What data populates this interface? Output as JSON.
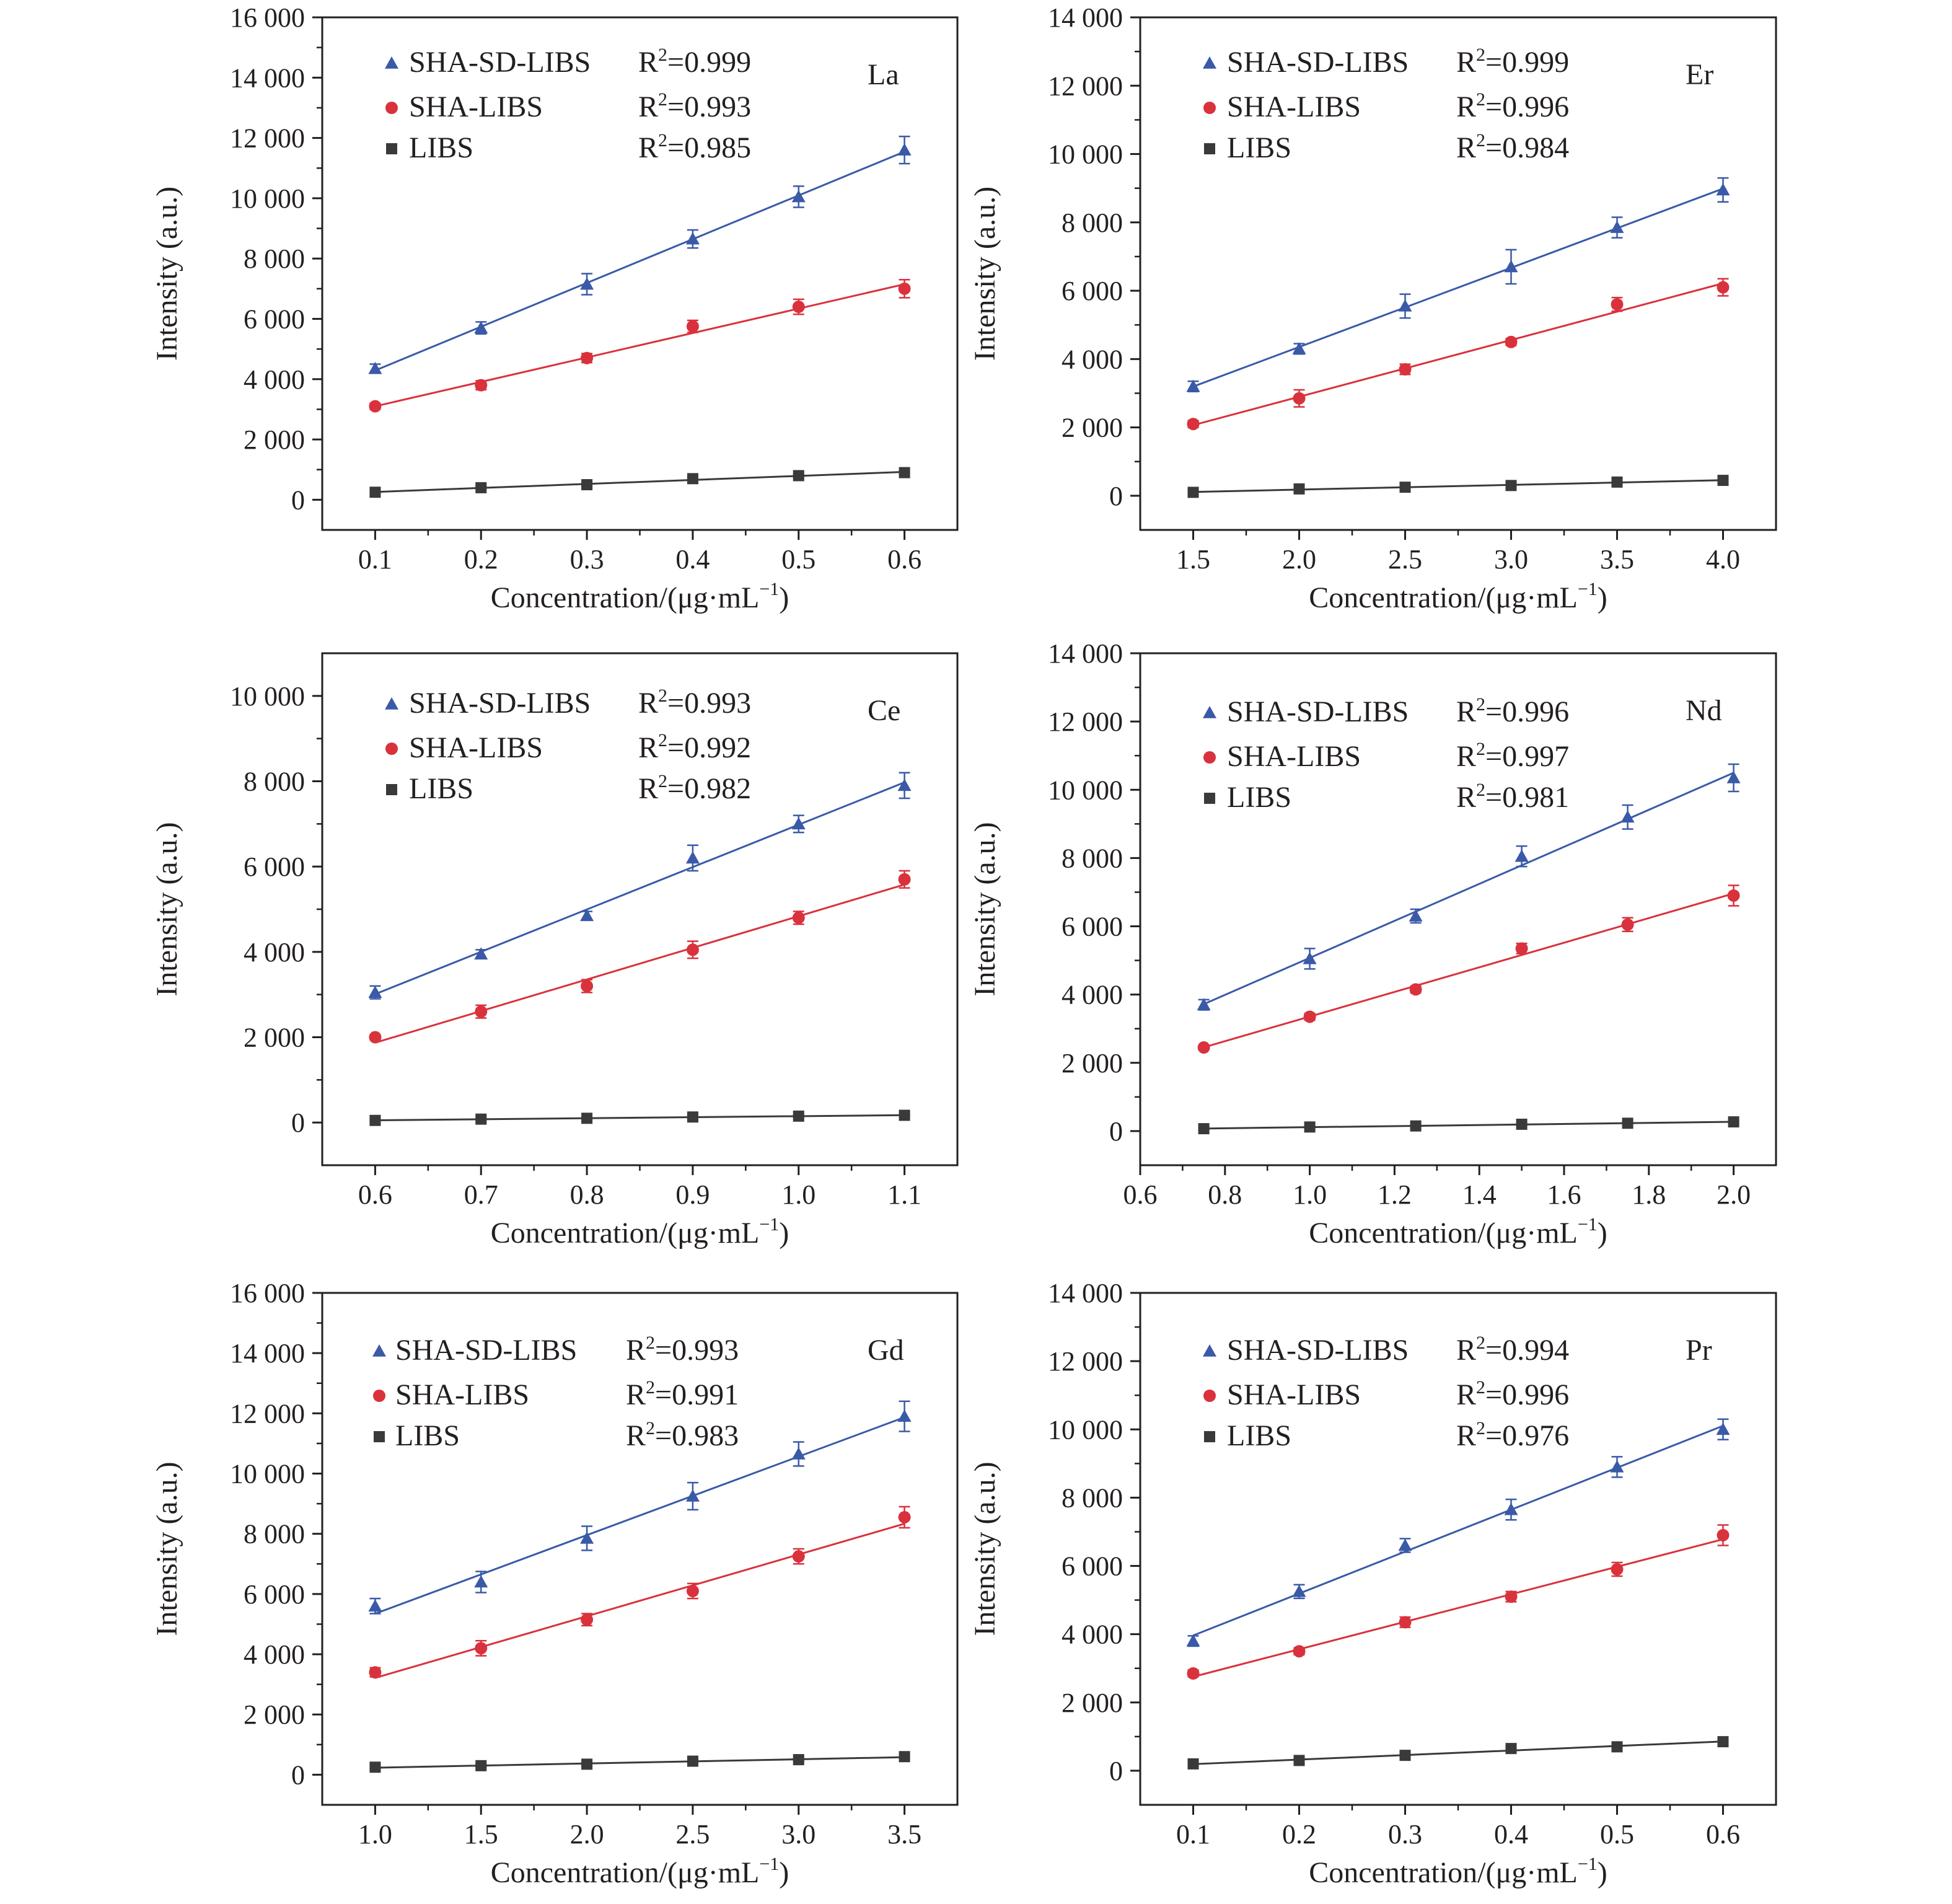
{
  "colors": {
    "sha_sd_libs": "#3a5aa8",
    "sha_libs": "#d9323c",
    "libs": "#3a3a3a",
    "axis": "#231f20"
  },
  "chart_data": [
    {
      "type": "scatter",
      "element_label": "La",
      "xlabel": "Concentration/(μg·mL",
      "xlabel_sup": "−1",
      "xlabel_tail": ")",
      "ylabel": "Intensity (a.u.)",
      "xlim": [
        0.05,
        0.65
      ],
      "ylim": [
        -1000,
        16000
      ],
      "x": [
        0.1,
        0.2,
        0.3,
        0.4,
        0.5,
        0.6
      ],
      "x_ticks": [
        "0.1",
        "0.2",
        "0.3",
        "0.4",
        "0.5",
        "0.6"
      ],
      "y_ticks": [
        0,
        2000,
        4000,
        6000,
        8000,
        10000,
        12000,
        14000,
        16000
      ],
      "y_tick_labels": [
        "0",
        "2 000",
        "4 000",
        "6 000",
        "8 000",
        "10 000",
        "12 000",
        "14 000",
        "16 000"
      ],
      "series": [
        {
          "name": "SHA-SD-LIBS",
          "marker": "triangle",
          "r2_label": "R",
          "r2_sup": "2",
          "r2_value": "=0.999",
          "values": [
            4350,
            5700,
            7150,
            8650,
            10050,
            11600
          ],
          "errors": [
            150,
            200,
            350,
            300,
            350,
            450
          ]
        },
        {
          "name": "SHA-LIBS",
          "marker": "circle",
          "r2_label": "R",
          "r2_sup": "2",
          "r2_value": "=0.993",
          "values": [
            3100,
            3800,
            4700,
            5750,
            6400,
            7000
          ],
          "errors": [
            100,
            150,
            150,
            200,
            250,
            300
          ]
        },
        {
          "name": "LIBS",
          "marker": "square",
          "r2_label": "R",
          "r2_sup": "2",
          "r2_value": "=0.985",
          "values": [
            250,
            400,
            500,
            700,
            800,
            900
          ],
          "errors": [
            50,
            50,
            50,
            50,
            50,
            50
          ]
        }
      ]
    },
    {
      "type": "scatter",
      "element_label": "Er",
      "xlabel": "Concentration/(μg·mL",
      "xlabel_sup": "−1",
      "xlabel_tail": ")",
      "ylabel": "Intensity (a.u.)",
      "xlim": [
        1.25,
        4.25
      ],
      "ylim": [
        -1000,
        14000
      ],
      "x": [
        1.5,
        2.0,
        2.5,
        3.0,
        3.5,
        4.0
      ],
      "x_ticks": [
        "1.5",
        "2.0",
        "2.5",
        "3.0",
        "3.5",
        "4.0"
      ],
      "y_ticks": [
        0,
        2000,
        4000,
        6000,
        8000,
        10000,
        12000,
        14000
      ],
      "y_tick_labels": [
        "0",
        "2 000",
        "4 000",
        "6 000",
        "8 000",
        "10 000",
        "12 000",
        "14 000"
      ],
      "series": [
        {
          "name": "SHA-SD-LIBS",
          "marker": "triangle",
          "r2_label": "R",
          "r2_sup": "2",
          "r2_value": "=0.999",
          "values": [
            3200,
            4300,
            5550,
            6700,
            7850,
            8950
          ],
          "errors": [
            150,
            150,
            350,
            500,
            300,
            350
          ]
        },
        {
          "name": "SHA-LIBS",
          "marker": "circle",
          "r2_label": "R",
          "r2_sup": "2",
          "r2_value": "=0.996",
          "values": [
            2100,
            2850,
            3700,
            4500,
            5600,
            6100
          ],
          "errors": [
            100,
            250,
            150,
            100,
            200,
            250
          ]
        },
        {
          "name": "LIBS",
          "marker": "square",
          "r2_label": "R",
          "r2_sup": "2",
          "r2_value": "=0.984",
          "values": [
            100,
            200,
            250,
            300,
            400,
            450
          ],
          "errors": [
            50,
            50,
            50,
            50,
            50,
            50
          ]
        }
      ]
    },
    {
      "type": "scatter",
      "element_label": "Ce",
      "xlabel": "Concentration/(μg·mL",
      "xlabel_sup": "−1",
      "xlabel_tail": ")",
      "ylabel": "Intensity (a.u.)",
      "xlim": [
        0.55,
        1.15
      ],
      "ylim": [
        -1000,
        11000
      ],
      "x": [
        0.6,
        0.7,
        0.8,
        0.9,
        1.0,
        1.1
      ],
      "x_ticks": [
        "0.6",
        "0.7",
        "0.8",
        "0.9",
        "1.0",
        "1.1"
      ],
      "y_ticks": [
        0,
        2000,
        4000,
        6000,
        8000,
        10000
      ],
      "y_tick_labels": [
        "0",
        "2 000",
        "4 000",
        "6 000",
        "8 000",
        "10 000"
      ],
      "series": [
        {
          "name": "SHA-SD-LIBS",
          "marker": "triangle",
          "r2_label": "R",
          "r2_sup": "2",
          "r2_value": "=0.993",
          "values": [
            3050,
            3950,
            4850,
            6200,
            7000,
            7900
          ],
          "errors": [
            150,
            100,
            100,
            300,
            200,
            300
          ]
        },
        {
          "name": "SHA-LIBS",
          "marker": "circle",
          "r2_label": "R",
          "r2_sup": "2",
          "r2_value": "=0.992",
          "values": [
            2000,
            2600,
            3200,
            4050,
            4800,
            5700
          ],
          "errors": [
            50,
            150,
            150,
            200,
            150,
            200
          ]
        },
        {
          "name": "LIBS",
          "marker": "square",
          "r2_label": "R",
          "r2_sup": "2",
          "r2_value": "=0.982",
          "values": [
            50,
            80,
            100,
            130,
            150,
            170
          ],
          "errors": [
            30,
            30,
            30,
            30,
            30,
            30
          ]
        }
      ]
    },
    {
      "type": "scatter",
      "element_label": "Nd",
      "xlabel": "Concentration/(μg·mL",
      "xlabel_sup": "−1",
      "xlabel_tail": ")",
      "ylabel": "Intensity (a.u.)",
      "xlim": [
        0.6,
        2.1
      ],
      "ylim": [
        -1000,
        14000
      ],
      "x": [
        0.75,
        1.0,
        1.25,
        1.5,
        1.75,
        2.0
      ],
      "x_ticks": [
        "0.6",
        "0.8",
        "1.0",
        "1.2",
        "1.4",
        "1.6",
        "1.8",
        "2.0"
      ],
      "x_tick_values": [
        0.6,
        0.8,
        1.0,
        1.2,
        1.4,
        1.6,
        1.8,
        2.0
      ],
      "y_ticks": [
        0,
        2000,
        4000,
        6000,
        8000,
        10000,
        12000,
        14000
      ],
      "y_tick_labels": [
        "0",
        "2 000",
        "4 000",
        "6 000",
        "8 000",
        "10 000",
        "12 000",
        "14 000"
      ],
      "series": [
        {
          "name": "SHA-SD-LIBS",
          "marker": "triangle",
          "r2_label": "R",
          "r2_sup": "2",
          "r2_value": "=0.996",
          "values": [
            3700,
            5050,
            6300,
            8050,
            9200,
            10350
          ],
          "errors": [
            150,
            300,
            200,
            300,
            350,
            400
          ]
        },
        {
          "name": "SHA-LIBS",
          "marker": "circle",
          "r2_label": "R",
          "r2_sup": "2",
          "r2_value": "=0.997",
          "values": [
            2450,
            3350,
            4150,
            5350,
            6050,
            6900
          ],
          "errors": [
            50,
            100,
            100,
            150,
            200,
            300
          ]
        },
        {
          "name": "LIBS",
          "marker": "square",
          "r2_label": "R",
          "r2_sup": "2",
          "r2_value": "=0.981",
          "values": [
            70,
            120,
            150,
            200,
            230,
            270
          ],
          "errors": [
            30,
            30,
            30,
            30,
            30,
            30
          ]
        }
      ]
    },
    {
      "type": "scatter",
      "element_label": "Gd",
      "xlabel": "Concentration/(μg·mL",
      "xlabel_sup": "−1",
      "xlabel_tail": ")",
      "ylabel": "Intensity (a.u.)",
      "xlim": [
        0.75,
        3.75
      ],
      "ylim": [
        -1000,
        16000
      ],
      "x": [
        1.0,
        1.5,
        2.0,
        2.5,
        3.0,
        3.5
      ],
      "x_ticks": [
        "1.0",
        "1.5",
        "2.0",
        "2.5",
        "3.0",
        "3.5"
      ],
      "y_ticks": [
        0,
        2000,
        4000,
        6000,
        8000,
        10000,
        12000,
        14000,
        16000
      ],
      "y_tick_labels": [
        "0",
        "2 000",
        "4 000",
        "6 000",
        "8 000",
        "10 000",
        "12 000",
        "14 000",
        "16 000"
      ],
      "series": [
        {
          "name": "SHA-SD-LIBS",
          "marker": "triangle",
          "r2_label": "R",
          "r2_sup": "2",
          "r2_value": "=0.993",
          "values": [
            5600,
            6400,
            7850,
            9250,
            10650,
            11900
          ],
          "errors": [
            250,
            350,
            400,
            450,
            400,
            500
          ]
        },
        {
          "name": "SHA-LIBS",
          "marker": "circle",
          "r2_label": "R",
          "r2_sup": "2",
          "r2_value": "=0.991",
          "values": [
            3400,
            4200,
            5150,
            6100,
            7250,
            8550
          ],
          "errors": [
            150,
            250,
            200,
            250,
            250,
            350
          ]
        },
        {
          "name": "LIBS",
          "marker": "square",
          "r2_label": "R",
          "r2_sup": "2",
          "r2_value": "=0.983",
          "values": [
            250,
            300,
            350,
            450,
            500,
            600
          ],
          "errors": [
            50,
            50,
            50,
            50,
            50,
            50
          ]
        }
      ]
    },
    {
      "type": "scatter",
      "element_label": "Pr",
      "xlabel": "Concentration/(μg·mL",
      "xlabel_sup": "−1",
      "xlabel_tail": ")",
      "ylabel": "Intensity (a.u.)",
      "xlim": [
        0.05,
        0.65
      ],
      "ylim": [
        -1000,
        14000
      ],
      "x": [
        0.1,
        0.2,
        0.3,
        0.4,
        0.5,
        0.6
      ],
      "x_ticks": [
        "0.1",
        "0.2",
        "0.3",
        "0.4",
        "0.5",
        "0.6"
      ],
      "y_ticks": [
        0,
        2000,
        4000,
        6000,
        8000,
        10000,
        12000,
        14000
      ],
      "y_tick_labels": [
        "0",
        "2 000",
        "4 000",
        "6 000",
        "8 000",
        "10 000",
        "12 000",
        "14 000"
      ],
      "series": [
        {
          "name": "SHA-SD-LIBS",
          "marker": "triangle",
          "r2_label": "R",
          "r2_sup": "2",
          "r2_value": "=0.994",
          "values": [
            3800,
            5250,
            6600,
            7650,
            8900,
            10000
          ],
          "errors": [
            150,
            200,
            200,
            300,
            300,
            300
          ]
        },
        {
          "name": "SHA-LIBS",
          "marker": "circle",
          "r2_label": "R",
          "r2_sup": "2",
          "r2_value": "=0.996",
          "values": [
            2850,
            3500,
            4350,
            5100,
            5900,
            6900
          ],
          "errors": [
            100,
            100,
            150,
            150,
            200,
            300
          ]
        },
        {
          "name": "LIBS",
          "marker": "square",
          "r2_label": "R",
          "r2_sup": "2",
          "r2_value": "=0.976",
          "values": [
            200,
            300,
            450,
            650,
            700,
            850
          ],
          "errors": [
            50,
            50,
            50,
            50,
            50,
            50
          ]
        }
      ]
    }
  ]
}
